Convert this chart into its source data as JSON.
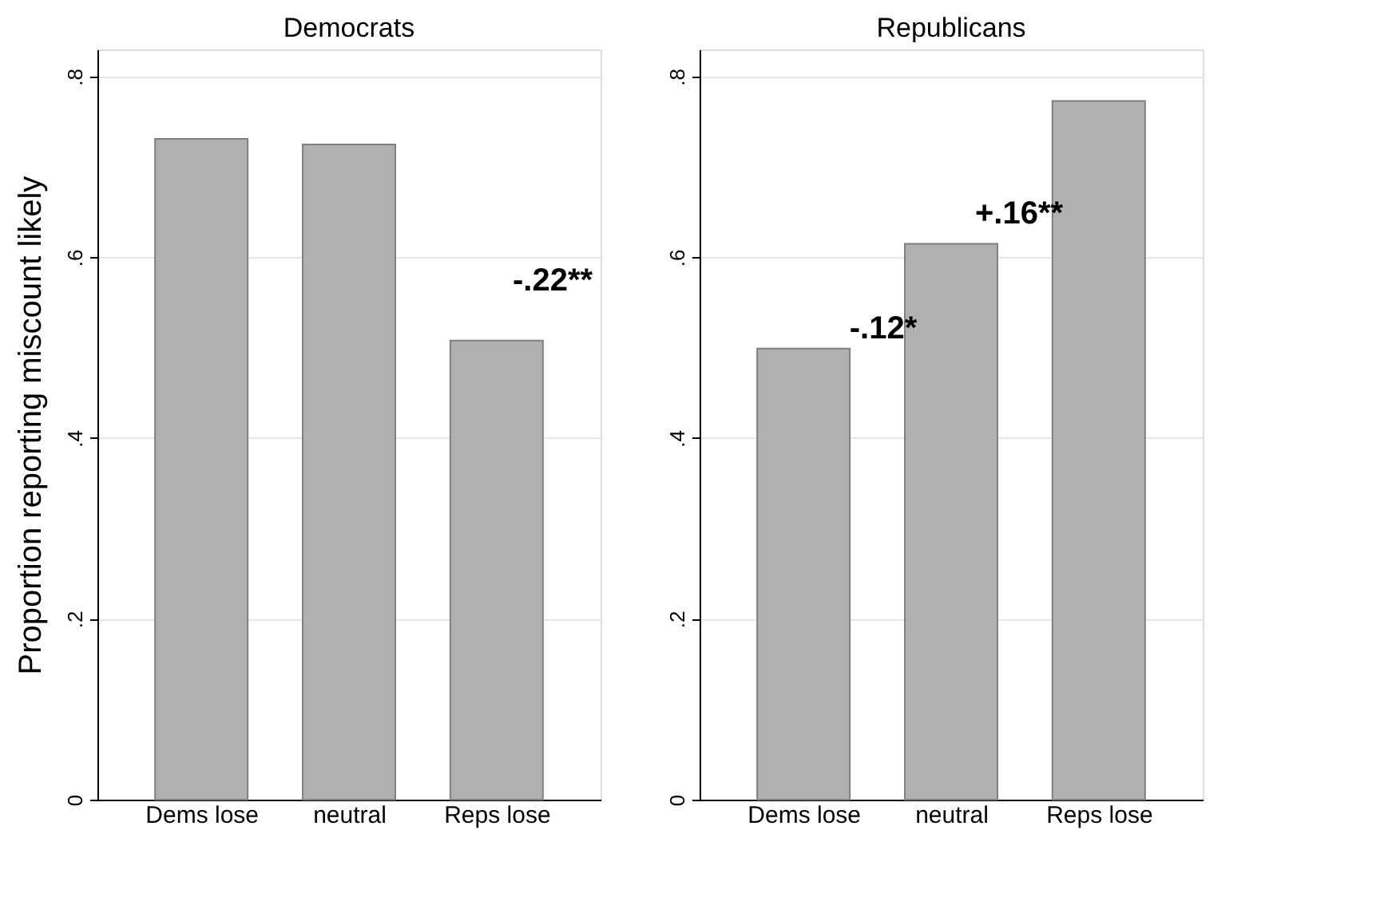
{
  "chart_data": [
    {
      "type": "bar",
      "title": "Democrats",
      "ylabel": "Proportion reporting miscount likely",
      "categories": [
        "Dems lose",
        "neutral",
        "Reps lose"
      ],
      "values": [
        0.731,
        0.725,
        0.508
      ],
      "color": "#b0b0b0",
      "ylim": [
        0,
        0.83
      ],
      "yticks": [
        0,
        {
          "value": 0.2,
          "label": ".2"
        },
        {
          "value": 0.4,
          "label": ".4"
        },
        {
          "value": 0.6,
          "label": ".6"
        },
        {
          "value": 0.8,
          "label": ".8"
        }
      ],
      "grid": "y",
      "annotations": [
        "-.22**"
      ]
    },
    {
      "type": "bar",
      "title": "Republicans",
      "categories": [
        "Dems lose",
        "neutral",
        "Reps lose"
      ],
      "values": [
        0.499,
        0.615,
        0.773
      ],
      "color": "#b0b0b0",
      "ylim": [
        0,
        0.83
      ],
      "yticks": [
        0,
        {
          "value": 0.2,
          "label": ".2"
        },
        {
          "value": 0.4,
          "label": ".4"
        },
        {
          "value": 0.6,
          "label": ".6"
        },
        {
          "value": 0.8,
          "label": ".8"
        }
      ],
      "grid": "y",
      "annotations": [
        "-.12*",
        "+.16**"
      ]
    }
  ]
}
